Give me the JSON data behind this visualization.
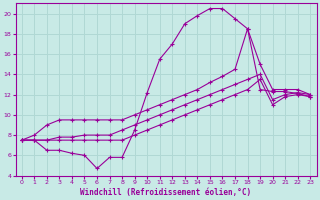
{
  "xlabel": "Windchill (Refroidissement éolien,°C)",
  "bg_color": "#c8eae6",
  "grid_color": "#b0d8d4",
  "line_color": "#990099",
  "xlim": [
    -0.5,
    23.5
  ],
  "ylim": [
    4,
    21
  ],
  "xticks": [
    0,
    1,
    2,
    3,
    4,
    5,
    6,
    7,
    8,
    9,
    10,
    11,
    12,
    13,
    14,
    15,
    16,
    17,
    18,
    19,
    20,
    21,
    22,
    23
  ],
  "yticks": [
    4,
    6,
    8,
    10,
    12,
    14,
    16,
    18,
    20
  ],
  "line_peak_x": [
    0,
    1,
    2,
    3,
    4,
    5,
    6,
    7,
    8,
    9,
    10,
    11,
    12,
    13,
    14,
    15,
    16,
    17,
    18,
    19,
    20,
    21,
    22,
    23
  ],
  "line_peak_y": [
    7.5,
    7.5,
    6.5,
    6.5,
    6.2,
    6.0,
    4.7,
    5.8,
    5.8,
    8.5,
    12.2,
    15.5,
    17.0,
    19.0,
    19.8,
    20.5,
    20.5,
    19.5,
    18.5,
    12.5,
    12.3,
    12.3,
    12.1,
    11.8
  ],
  "line_upper_x": [
    0,
    1,
    2,
    3,
    4,
    5,
    6,
    7,
    8,
    9,
    10,
    11,
    12,
    13,
    14,
    15,
    16,
    17,
    18,
    19,
    20,
    21,
    22,
    23
  ],
  "line_upper_y": [
    7.5,
    8.0,
    9.0,
    9.5,
    9.5,
    9.5,
    9.5,
    9.5,
    9.5,
    10.0,
    10.5,
    11.0,
    11.5,
    12.0,
    12.5,
    13.2,
    13.8,
    14.5,
    18.5,
    15.0,
    12.5,
    12.5,
    12.5,
    12.0
  ],
  "line_mid_x": [
    0,
    1,
    2,
    3,
    4,
    5,
    6,
    7,
    8,
    9,
    10,
    11,
    12,
    13,
    14,
    15,
    16,
    17,
    18,
    19,
    20,
    21,
    22,
    23
  ],
  "line_mid_y": [
    7.5,
    7.5,
    7.5,
    7.8,
    7.8,
    8.0,
    8.0,
    8.0,
    8.5,
    9.0,
    9.5,
    10.0,
    10.5,
    11.0,
    11.5,
    12.0,
    12.5,
    13.0,
    13.5,
    14.0,
    11.5,
    12.0,
    12.2,
    12.0
  ],
  "line_low_x": [
    0,
    1,
    2,
    3,
    4,
    5,
    6,
    7,
    8,
    9,
    10,
    11,
    12,
    13,
    14,
    15,
    16,
    17,
    18,
    19,
    20,
    21,
    22,
    23
  ],
  "line_low_y": [
    7.5,
    7.5,
    7.5,
    7.5,
    7.5,
    7.5,
    7.5,
    7.5,
    7.5,
    8.0,
    8.5,
    9.0,
    9.5,
    10.0,
    10.5,
    11.0,
    11.5,
    12.0,
    12.5,
    13.5,
    11.0,
    11.8,
    12.0,
    11.8
  ]
}
